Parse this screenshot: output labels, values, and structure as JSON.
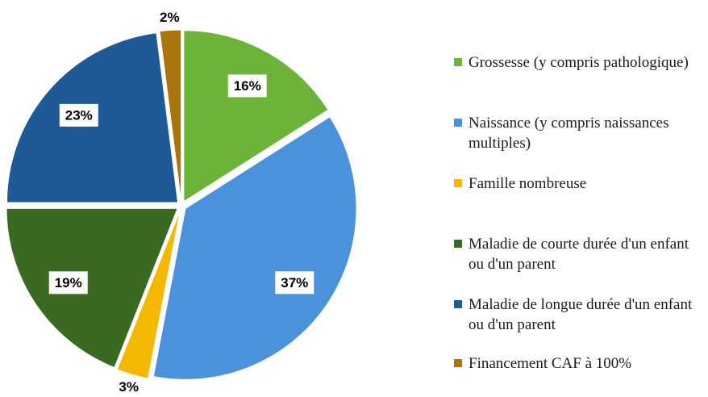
{
  "chart_data": {
    "type": "pie",
    "categories": [
      "Grossesse (y compris pathologique)",
      "Naissance (y compris naissances multiples)",
      "Famille nombreuse",
      "Maladie de courte durée d'un enfant ou d'un parent",
      "Maladie de longue durée d'un enfant ou d'un parent",
      "Financement CAF à 100%"
    ],
    "values": [
      16,
      37,
      3,
      19,
      23,
      2
    ],
    "value_labels": [
      "16%",
      "37%",
      "3%",
      "19%",
      "23%",
      "2%"
    ],
    "colors": [
      "#6cb33a",
      "#4a92dc",
      "#f5b800",
      "#3a6a22",
      "#1d5a97",
      "#a8760c"
    ],
    "legend": "right"
  }
}
